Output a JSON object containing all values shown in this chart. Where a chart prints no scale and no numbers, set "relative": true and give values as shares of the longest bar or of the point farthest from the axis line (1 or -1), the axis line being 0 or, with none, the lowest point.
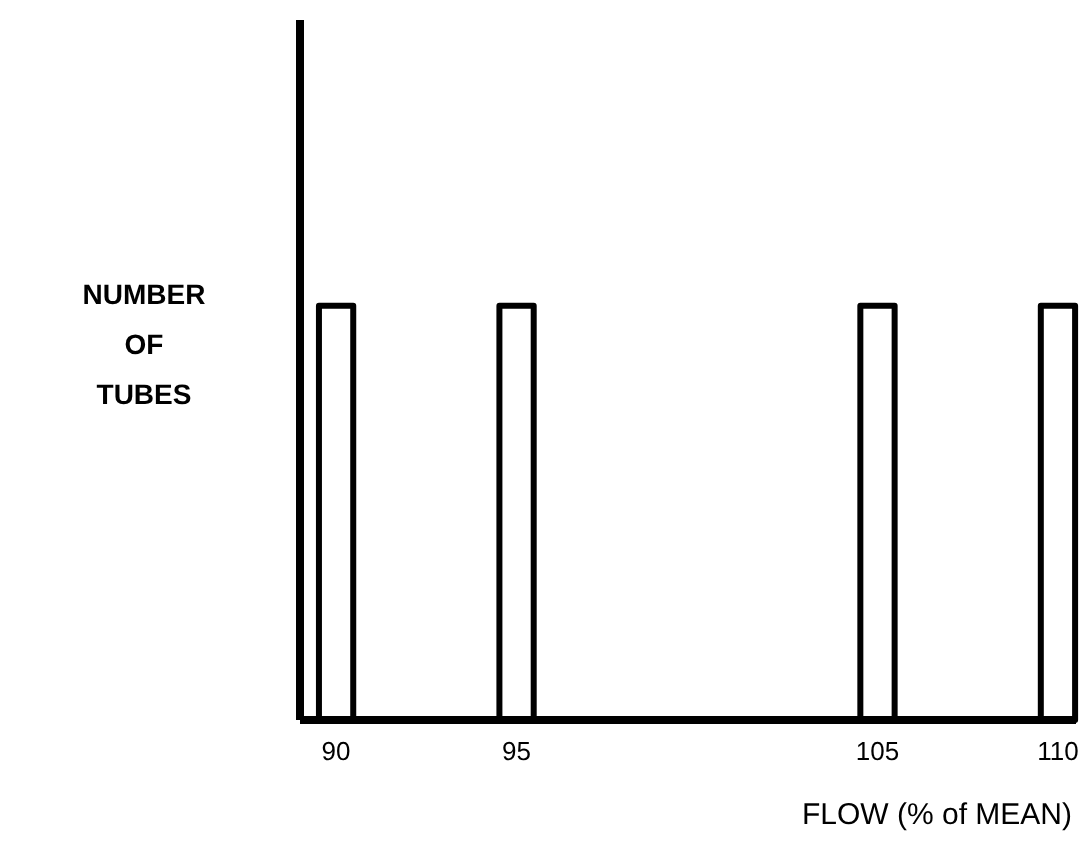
{
  "chart_data": {
    "type": "bar",
    "xlabel": "FLOW (% of MEAN)",
    "ylabel": "NUMBER OF TUBES",
    "relative": true,
    "x": [
      90,
      95,
      105,
      110
    ],
    "values": [
      1,
      1,
      1,
      1
    ],
    "color": "#ffffff",
    "xlim": [
      89,
      110.5
    ],
    "xticks": [
      90,
      95,
      105,
      110
    ]
  }
}
